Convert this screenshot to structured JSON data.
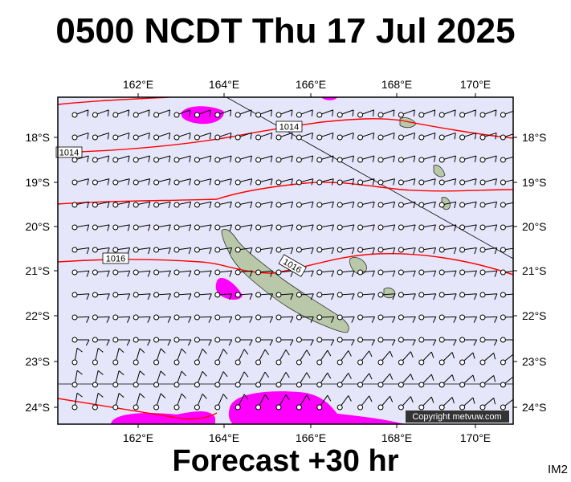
{
  "header": {
    "title": "0500 NCDT Thu 17 Jul 2025"
  },
  "footer": {
    "forecast": "Forecast +30 hr",
    "code": "IM2"
  },
  "map": {
    "copyright": "Copyright metvuw.com",
    "lon_labels": [
      "162°E",
      "164°E",
      "166°E",
      "168°E",
      "170°E"
    ],
    "lat_labels": [
      "18°S",
      "19°S",
      "20°S",
      "21°S",
      "22°S",
      "23°S",
      "24°S"
    ],
    "isobar_labels": [
      "1014",
      "1014",
      "1016",
      "1016"
    ],
    "colors": {
      "ocean": "#e6e6fa",
      "land": "#b8c8a8",
      "isobar": "#ff0000",
      "rain": "#ff00ff",
      "wind": "#000000"
    }
  }
}
